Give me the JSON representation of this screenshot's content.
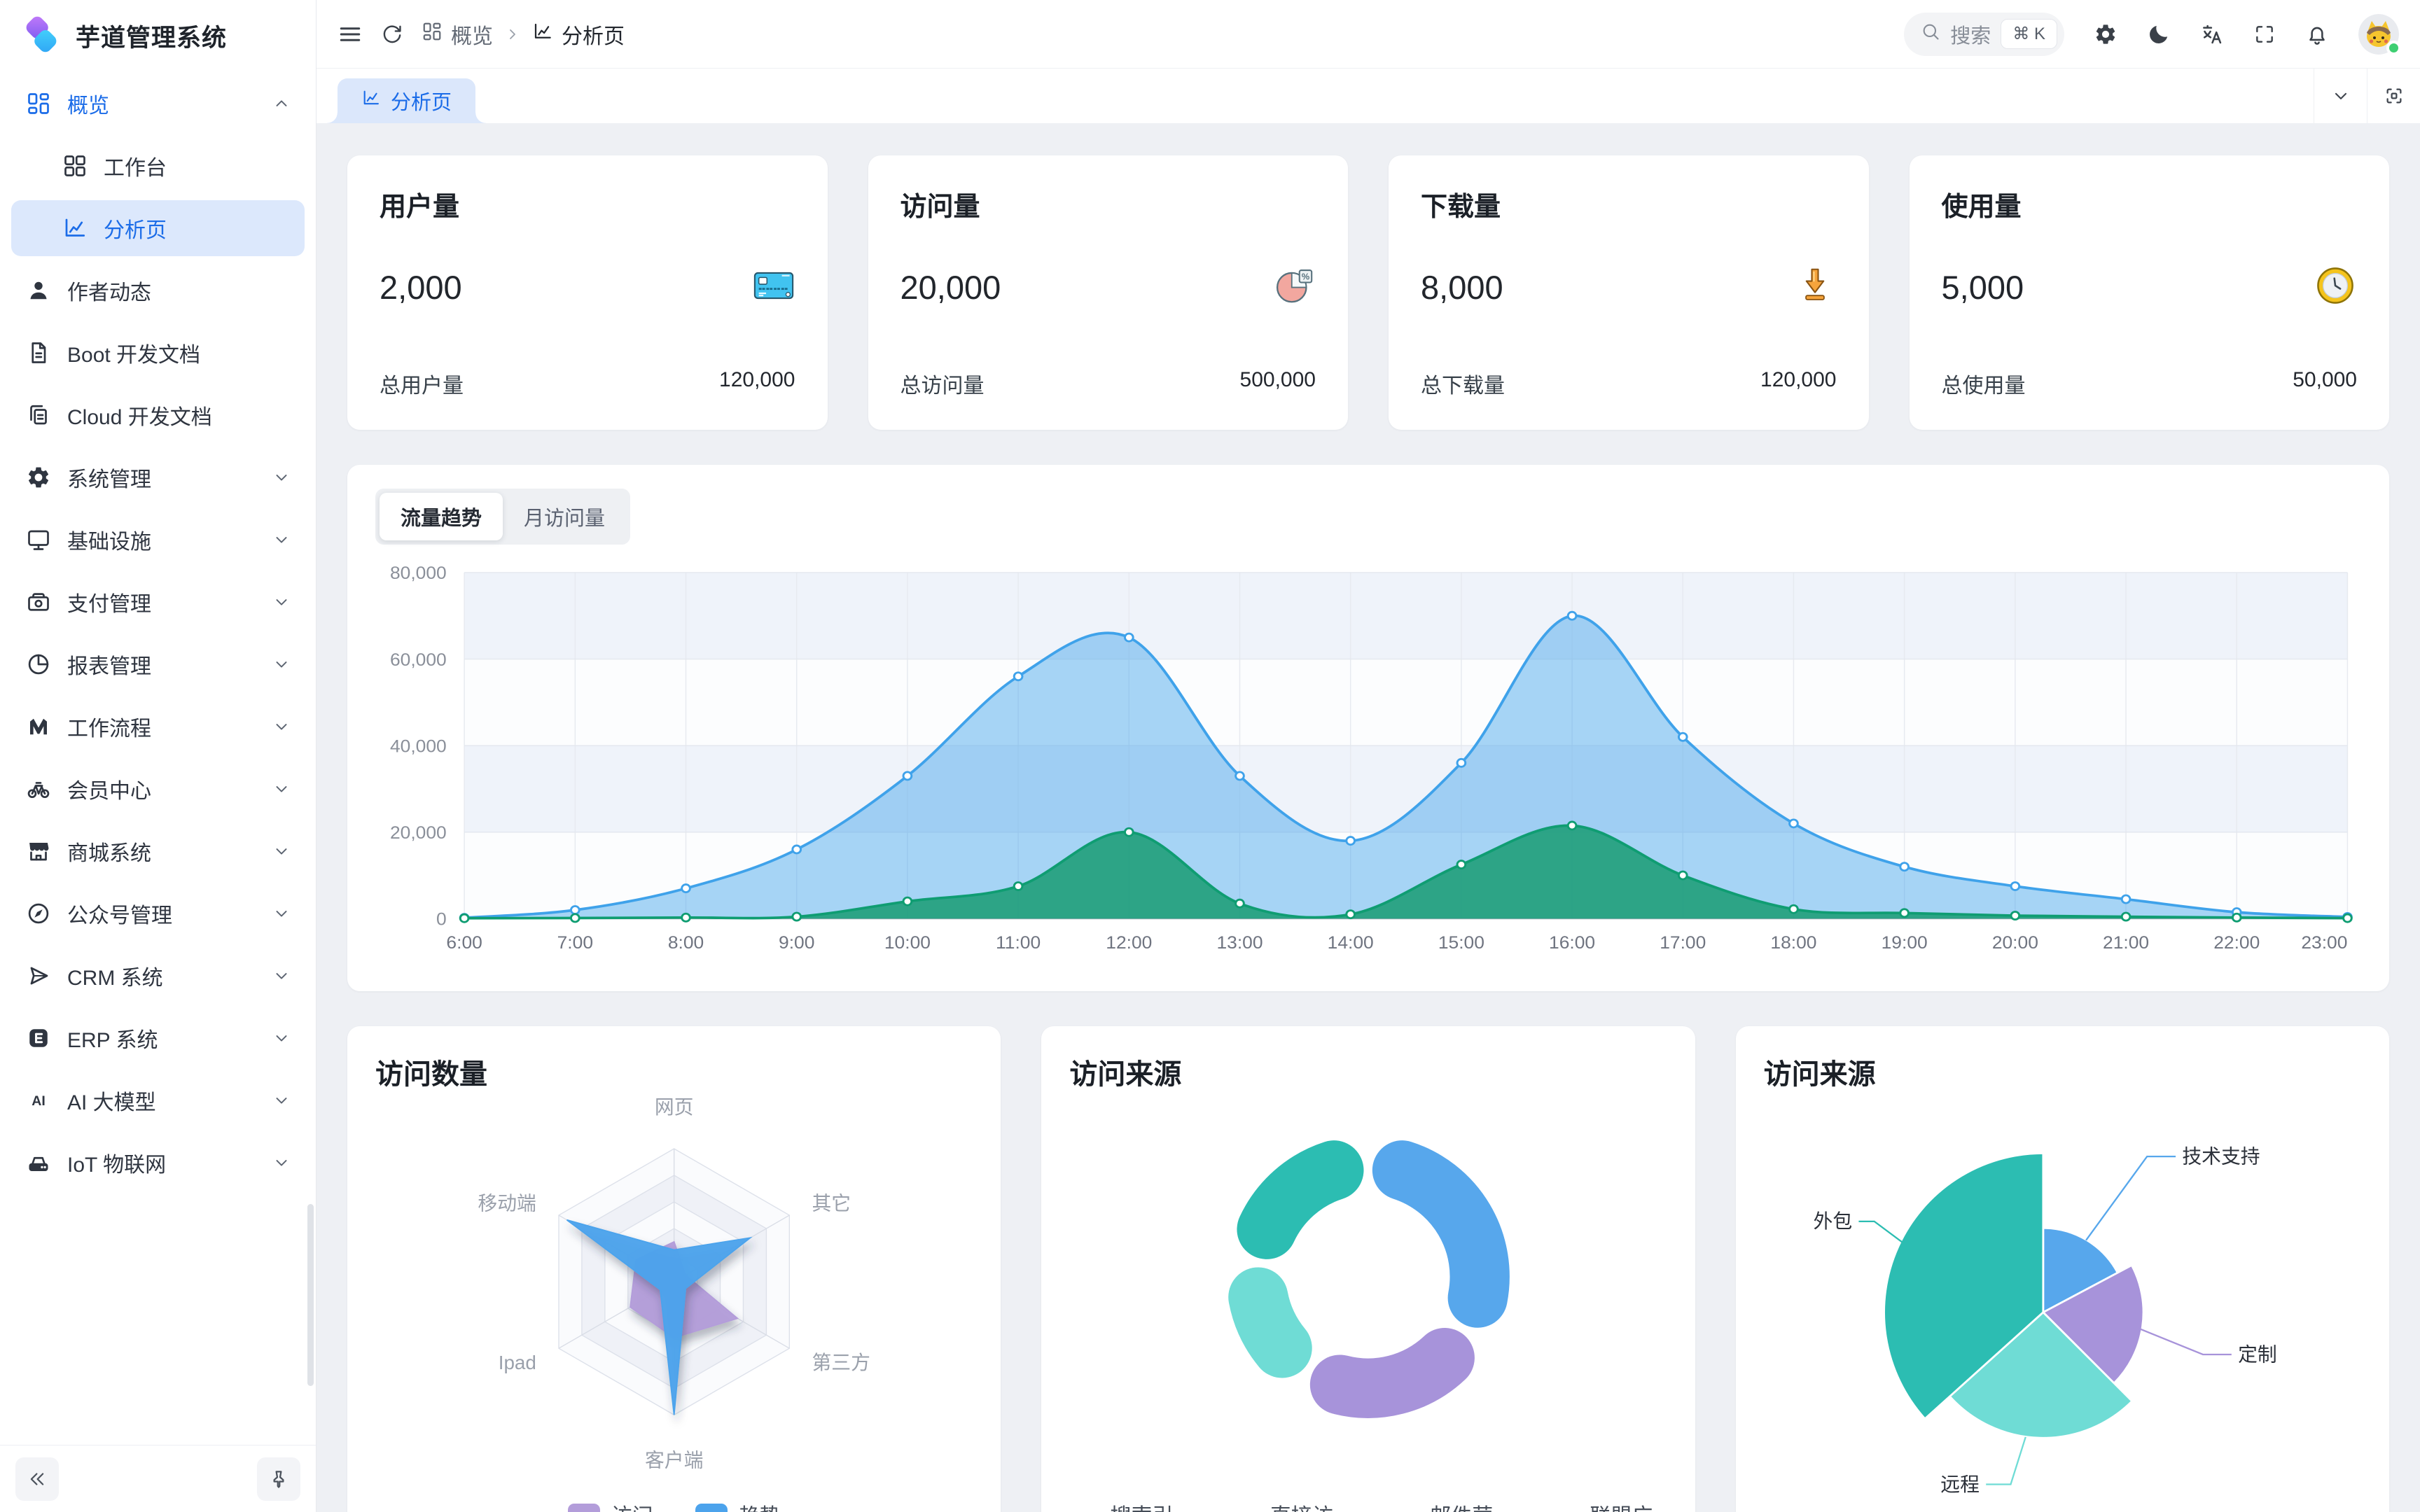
{
  "app": {
    "title": "芋道管理系统"
  },
  "sidebar": {
    "items": [
      {
        "label": "概览",
        "icon": "grid",
        "primary": true,
        "chevron": "up"
      },
      {
        "label": "工作台",
        "icon": "grid2",
        "sub": true
      },
      {
        "label": "分析页",
        "icon": "analytics",
        "sub": true,
        "selected": true
      },
      {
        "label": "作者动态",
        "icon": "user"
      },
      {
        "label": "Boot 开发文档",
        "icon": "document"
      },
      {
        "label": "Cloud 开发文档",
        "icon": "documents"
      },
      {
        "label": "系统管理",
        "icon": "gear",
        "chevron": "down"
      },
      {
        "label": "基础设施",
        "icon": "monitor",
        "chevron": "down"
      },
      {
        "label": "支付管理",
        "icon": "payment",
        "chevron": "down"
      },
      {
        "label": "报表管理",
        "icon": "report",
        "chevron": "down"
      },
      {
        "label": "工作流程",
        "icon": "workflow",
        "chevron": "down"
      },
      {
        "label": "会员中心",
        "icon": "member",
        "chevron": "down"
      },
      {
        "label": "商城系统",
        "icon": "mall",
        "chevron": "down"
      },
      {
        "label": "公众号管理",
        "icon": "compass",
        "chevron": "down"
      },
      {
        "label": "CRM 系统",
        "icon": "crm",
        "chevron": "down"
      },
      {
        "label": "ERP 系统",
        "icon": "erp",
        "chevron": "down"
      },
      {
        "label": "AI 大模型",
        "icon": "ai",
        "chevron": "down"
      },
      {
        "label": "IoT 物联网",
        "icon": "iot",
        "chevron": "down"
      }
    ]
  },
  "header": {
    "breadcrumb": [
      {
        "label": "概览",
        "icon": "grid"
      },
      {
        "label": "分析页",
        "icon": "analytics"
      }
    ],
    "search": {
      "placeholder": "搜索",
      "shortcut": "⌘ K"
    }
  },
  "tabbar": {
    "active_tab": "分析页"
  },
  "stats": [
    {
      "title": "用户量",
      "value": "2,000",
      "icon": "credit-card",
      "footer_label": "总用户量",
      "footer_value": "120,000"
    },
    {
      "title": "访问量",
      "value": "20,000",
      "icon": "pie",
      "footer_label": "总访问量",
      "footer_value": "500,000"
    },
    {
      "title": "下载量",
      "value": "8,000",
      "icon": "download",
      "footer_label": "总下载量",
      "footer_value": "120,000"
    },
    {
      "title": "使用量",
      "value": "5,000",
      "icon": "clock",
      "footer_label": "总使用量",
      "footer_value": "50,000"
    }
  ],
  "trend": {
    "tabs": [
      "流量趋势",
      "月访问量"
    ],
    "active_tab": "流量趋势"
  },
  "cards": {
    "radar_title": "访问数量",
    "donut_title": "访问来源",
    "rose_title": "访问来源"
  },
  "colors": {
    "primary": "#1b6ce8",
    "palette": [
      "#57a7ec",
      "#a793da",
      "#6fdcd5",
      "#2cbdb2"
    ],
    "trend_blue": "#3fa2ea",
    "trend_green": "#0f9d72"
  },
  "chart_data": [
    {
      "type": "area",
      "title": "流量趋势",
      "x": [
        "6:00",
        "7:00",
        "8:00",
        "9:00",
        "10:00",
        "11:00",
        "12:00",
        "13:00",
        "14:00",
        "15:00",
        "16:00",
        "17:00",
        "18:00",
        "19:00",
        "20:00",
        "21:00",
        "22:00",
        "23:00"
      ],
      "ylim": [
        0,
        80000
      ],
      "yticks": [
        "0",
        "20,000",
        "40,000",
        "60,000",
        "80,000"
      ],
      "grid": true,
      "series": [
        {
          "name": "",
          "color": "#3fa2ea",
          "fill": "rgba(63,162,234,0.45)",
          "values": [
            200,
            2000,
            7000,
            16000,
            33000,
            56000,
            65000,
            33000,
            18000,
            36000,
            70000,
            42000,
            22000,
            12000,
            7500,
            4500,
            1500,
            400
          ]
        },
        {
          "name": "",
          "color": "#0f9d72",
          "fill": "rgba(18,154,110,0.82)",
          "values": [
            100,
            150,
            250,
            450,
            4000,
            7500,
            20000,
            3500,
            1000,
            12500,
            21500,
            10000,
            2200,
            1300,
            700,
            450,
            250,
            120
          ]
        }
      ]
    },
    {
      "type": "radar",
      "title": "访问数量",
      "indicators": [
        "网页",
        "其它",
        "第三方",
        "客户端",
        "Ipad",
        "移动端"
      ],
      "max": 100,
      "legend_position": "bottom",
      "series": [
        {
          "name": "访问",
          "color": "#b39dda",
          "values": [
            30,
            10,
            55,
            42,
            38,
            33
          ]
        },
        {
          "name": "趋势",
          "color": "#4ca3ec",
          "values": [
            24,
            66,
            10,
            100,
            12,
            93
          ]
        }
      ]
    },
    {
      "type": "pie",
      "subtype": "donut",
      "title": "访问来源",
      "legend_position": "bottom",
      "items": [
        {
          "label": "搜索引擎",
          "value": 33,
          "color": "#57a7ec"
        },
        {
          "label": "直接访问",
          "value": 26,
          "color": "#a793da"
        },
        {
          "label": "邮件营销",
          "value": 18,
          "color": "#6fdcd5"
        },
        {
          "label": "联盟广告",
          "value": 23,
          "color": "#2cbdb2"
        }
      ]
    },
    {
      "type": "pie",
      "subtype": "rose",
      "title": "访问来源",
      "label_style": "callout",
      "items": [
        {
          "label": "技术支持",
          "value": 17,
          "angle": 62,
          "radius_ratio": 0.53,
          "color": "#57a7ec"
        },
        {
          "label": "定制",
          "value": 20,
          "angle": 73,
          "radius_ratio": 0.63,
          "color": "#a793da"
        },
        {
          "label": "远程",
          "value": 26,
          "angle": 93,
          "radius_ratio": 0.79,
          "color": "#6fdcd5"
        },
        {
          "label": "外包",
          "value": 37,
          "angle": 132,
          "radius_ratio": 1.0,
          "color": "#2cbdb2"
        }
      ]
    }
  ]
}
